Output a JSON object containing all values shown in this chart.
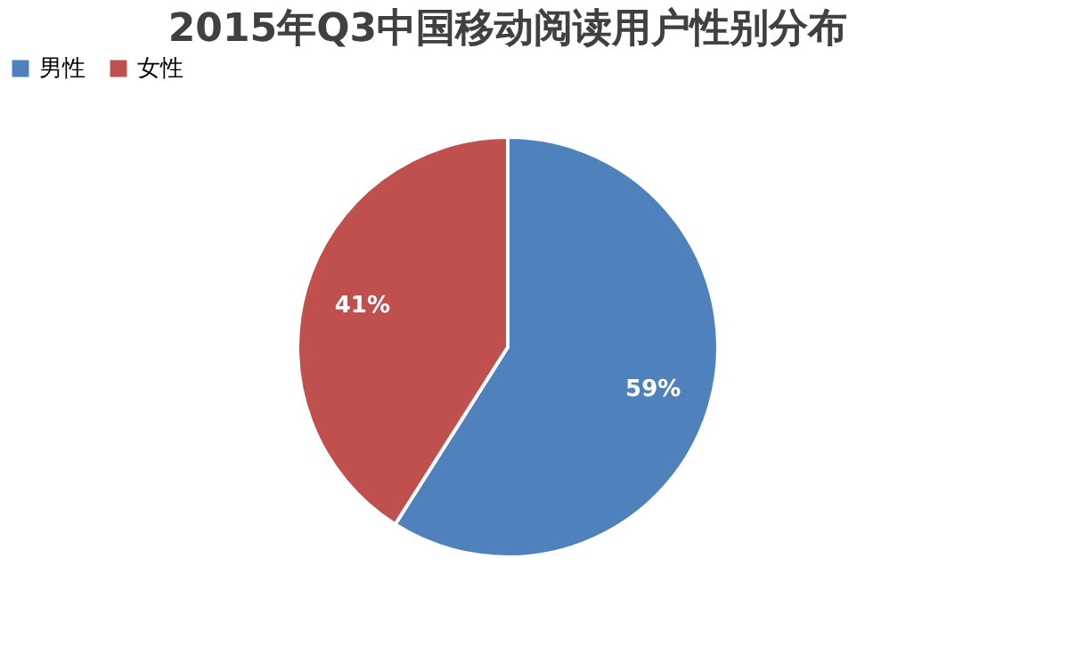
{
  "chart_data": {
    "type": "pie",
    "title": "2015年Q3中国移动阅读用户性别分布",
    "categories": [
      "男性",
      "女性"
    ],
    "values": [
      59,
      41
    ],
    "colors": [
      "#4f81bd",
      "#c0504d"
    ],
    "value_labels": [
      "59%",
      "41%"
    ],
    "legend": "top"
  }
}
